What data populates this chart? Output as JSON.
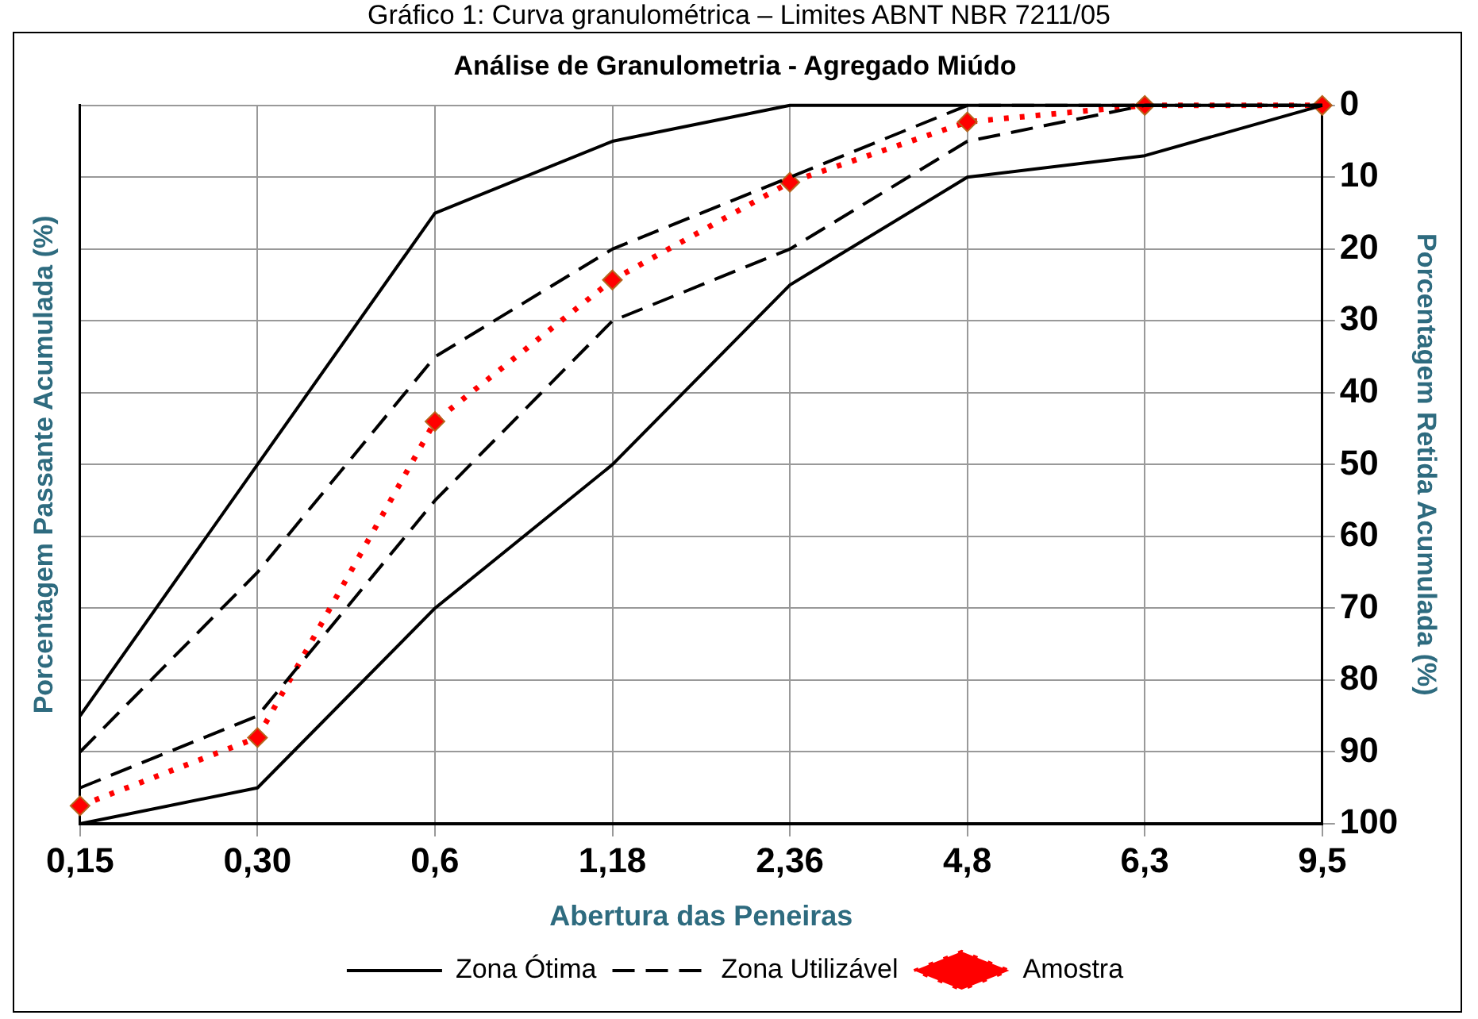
{
  "chart_data": {
    "type": "line",
    "title": "Análise de Granulometria - Agregado Miúdo",
    "xlabel": "Abertura das Peneiras",
    "ylabel": "Porcentagem Passante Acumulada (%)",
    "y2label": "Porcentagem Retida Acumulada (%)",
    "annotations": [
      "Gráfico 1: Curva granulométrica – Limites ABNT NBR 7211/05"
    ],
    "categories": [
      "0,15",
      "0,30",
      "0,6",
      "1,18",
      "2,36",
      "4,8",
      "6,3",
      "9,5"
    ],
    "y2lim": [
      100,
      0
    ],
    "y2ticks": [
      0,
      10,
      20,
      30,
      40,
      50,
      60,
      70,
      80,
      90,
      100
    ],
    "grid": true,
    "legend": "bottom",
    "series": [
      {
        "name": "Zona Ótima",
        "color": "#000000",
        "axis": "y2",
        "line_style": "solid",
        "marker": "none",
        "values": [
          85,
          50,
          15,
          5,
          0,
          0,
          0,
          0
        ]
      },
      {
        "color": "#000000",
        "axis": "y2",
        "line_style": "solid",
        "marker": "none",
        "values": [
          100,
          95,
          70,
          50,
          25,
          10,
          7,
          0
        ]
      },
      {
        "name": "Zona Utilizável",
        "color": "#000000",
        "axis": "y2",
        "line_style": "dashed",
        "marker": "none",
        "values": [
          90,
          65,
          35,
          20,
          10,
          0,
          0,
          0
        ]
      },
      {
        "color": "#000000",
        "axis": "y2",
        "line_style": "dashed",
        "marker": "none",
        "values": [
          95,
          85,
          55,
          30,
          20,
          5,
          0,
          0
        ]
      },
      {
        "name": "Amostra",
        "color": "#ff0000",
        "axis": "y2",
        "line_style": "dotted",
        "marker": "diamond",
        "values": [
          97.5,
          88,
          44,
          24.3,
          10.7,
          2.3,
          0,
          0
        ]
      }
    ]
  }
}
